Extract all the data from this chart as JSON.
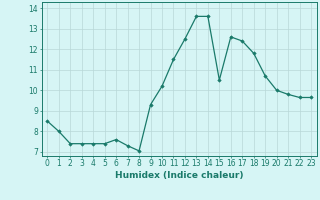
{
  "x": [
    0,
    1,
    2,
    3,
    4,
    5,
    6,
    7,
    8,
    9,
    10,
    11,
    12,
    13,
    14,
    15,
    16,
    17,
    18,
    19,
    20,
    21,
    22,
    23
  ],
  "y": [
    8.5,
    8.0,
    7.4,
    7.4,
    7.4,
    7.4,
    7.6,
    7.3,
    7.05,
    9.3,
    10.2,
    11.5,
    12.5,
    13.6,
    13.6,
    10.5,
    12.6,
    12.4,
    11.8,
    10.7,
    10.0,
    9.8,
    9.65,
    9.65
  ],
  "line_color": "#1a7a6a",
  "marker": "D",
  "marker_size": 1.8,
  "bg_color": "#d6f5f5",
  "grid_color": "#b8d8d8",
  "xlabel": "Humidex (Indice chaleur)",
  "xlim": [
    -0.5,
    23.5
  ],
  "ylim": [
    6.8,
    14.3
  ],
  "yticks": [
    7,
    8,
    9,
    10,
    11,
    12,
    13,
    14
  ],
  "xticks": [
    0,
    1,
    2,
    3,
    4,
    5,
    6,
    7,
    8,
    9,
    10,
    11,
    12,
    13,
    14,
    15,
    16,
    17,
    18,
    19,
    20,
    21,
    22,
    23
  ],
  "tick_label_fontsize": 5.5,
  "xlabel_fontsize": 6.5
}
